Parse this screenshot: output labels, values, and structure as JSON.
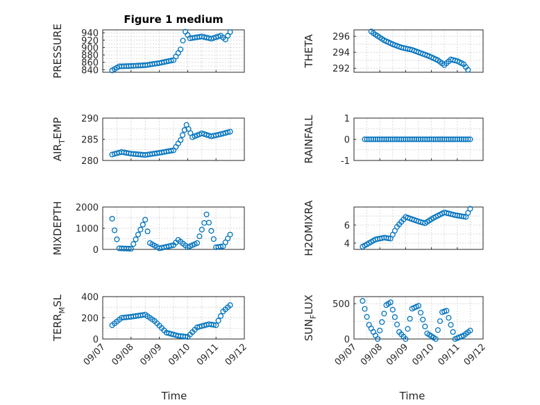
{
  "figure": {
    "background": "#ffffff",
    "marker_color": "#0072BD",
    "xtick_labels": [
      "09/07",
      "09/08",
      "09/09",
      "09/10",
      "09/11",
      "09/12"
    ],
    "xlabel": "Time"
  },
  "chart_data": [
    {
      "type": "scatter",
      "title": "Figure 1 medium",
      "ylabel": "PRESSURE",
      "xlim": [
        "2009-09-07",
        "2009-09-12"
      ],
      "ylim": [
        833,
        948
      ],
      "yticks": [
        840,
        860,
        880,
        900,
        920,
        940
      ],
      "grid": true,
      "series": [
        {
          "marker": "o",
          "x": [
            "2009-09-07 08:00",
            "2009-09-07 14:00",
            "2009-09-08 00:00",
            "2009-09-08 12:00",
            "2009-09-09 00:00",
            "2009-09-09 12:00",
            "2009-09-09 18:00",
            "2009-09-09 22:00",
            "2009-09-10 02:00",
            "2009-09-10 12:00",
            "2009-09-10 20:00",
            "2009-09-11 04:00",
            "2009-09-11 08:00",
            "2009-09-11 12:00"
          ],
          "y": [
            838,
            849,
            850,
            852,
            858,
            866,
            895,
            943,
            925,
            930,
            924,
            932,
            922,
            942
          ]
        }
      ]
    },
    {
      "type": "scatter",
      "title": "",
      "ylabel": "THETA",
      "xlim": [
        "2009-09-07",
        "2009-09-12"
      ],
      "ylim": [
        291.5,
        296.8
      ],
      "yticks": [
        292,
        294,
        296
      ],
      "grid": true,
      "series": [
        {
          "marker": "o",
          "x": [
            "2009-09-07 16:00",
            "2009-09-07 20:00",
            "2009-09-08 04:00",
            "2009-09-08 12:00",
            "2009-09-08 20:00",
            "2009-09-09 06:00",
            "2009-09-09 16:00",
            "2009-09-09 22:00",
            "2009-09-10 06:00",
            "2009-09-10 12:00",
            "2009-09-10 18:00",
            "2009-09-11 00:00",
            "2009-09-11 06:00",
            "2009-09-11 10:00"
          ],
          "y": [
            296.6,
            296.2,
            295.5,
            295.0,
            294.6,
            294.3,
            293.8,
            293.5,
            293.0,
            292.4,
            293.1,
            292.9,
            292.5,
            291.8
          ]
        }
      ]
    },
    {
      "type": "scatter",
      "title": "",
      "ylabel": "AIR_TEMP",
      "xlim": [
        "2009-09-07",
        "2009-09-12"
      ],
      "ylim": [
        280,
        290
      ],
      "yticks": [
        280,
        285,
        290
      ],
      "grid": true,
      "series": [
        {
          "marker": "o",
          "x": [
            "2009-09-07 08:00",
            "2009-09-07 16:00",
            "2009-09-08 00:00",
            "2009-09-08 12:00",
            "2009-09-09 00:00",
            "2009-09-09 12:00",
            "2009-09-09 18:00",
            "2009-09-09 23:00",
            "2009-09-10 04:00",
            "2009-09-10 12:00",
            "2009-09-10 20:00",
            "2009-09-11 04:00",
            "2009-09-11 12:00"
          ],
          "y": [
            281.4,
            282.0,
            281.6,
            281.3,
            281.8,
            282.4,
            284.8,
            288.4,
            285.5,
            286.4,
            285.7,
            286.2,
            286.8
          ]
        }
      ]
    },
    {
      "type": "scatter",
      "title": "",
      "ylabel": "RAINFALL",
      "xlim": [
        "2009-09-07",
        "2009-09-12"
      ],
      "ylim": [
        -1,
        1
      ],
      "yticks": [
        -1,
        0,
        1
      ],
      "grid": true,
      "series": [
        {
          "marker": "o",
          "x": [
            "2009-09-07 10:00",
            "2009-09-08 00:00",
            "2009-09-08 12:00",
            "2009-09-09 00:00",
            "2009-09-09 12:00",
            "2009-09-10 00:00",
            "2009-09-10 12:00",
            "2009-09-11 00:00",
            "2009-09-11 12:00"
          ],
          "y": [
            0,
            0,
            0,
            0,
            0,
            0,
            0,
            0,
            0
          ]
        }
      ]
    },
    {
      "type": "scatter",
      "title": "",
      "ylabel": "MIXDEPTH",
      "xlim": [
        "2009-09-07",
        "2009-09-12"
      ],
      "ylim": [
        0,
        2000
      ],
      "yticks": [
        0,
        1000,
        2000
      ],
      "grid": true,
      "series": [
        {
          "marker": "o",
          "x": [
            "2009-09-07 08:00",
            "2009-09-07 10:00",
            "2009-09-07 14:00",
            "2009-09-08 00:00",
            "2009-09-08 06:00",
            "2009-09-08 12:00",
            "2009-09-08 16:00",
            "2009-09-09 00:00",
            "2009-09-09 12:00",
            "2009-09-09 16:00",
            "2009-09-10 00:00",
            "2009-09-10 08:00",
            "2009-09-10 14:00",
            "2009-09-10 16:00",
            "2009-09-11 00:00",
            "2009-09-11 06:00",
            "2009-09-11 12:00"
          ],
          "y": [
            1450,
            900,
            50,
            30,
            700,
            1400,
            300,
            50,
            200,
            450,
            100,
            300,
            1250,
            1650,
            100,
            150,
            700
          ]
        }
      ]
    },
    {
      "type": "scatter",
      "title": "",
      "ylabel": "H2OMIXRA",
      "xlim": [
        "2009-09-07",
        "2009-09-12"
      ],
      "ylim": [
        3.3,
        8
      ],
      "yticks": [
        4,
        6
      ],
      "grid": true,
      "series": [
        {
          "marker": "o",
          "x": [
            "2009-09-07 08:00",
            "2009-09-07 20:00",
            "2009-09-08 04:00",
            "2009-09-08 10:00",
            "2009-09-08 16:00",
            "2009-09-09 00:00",
            "2009-09-09 12:00",
            "2009-09-09 18:00",
            "2009-09-10 02:00",
            "2009-09-10 12:00",
            "2009-09-10 22:00",
            "2009-09-11 08:00",
            "2009-09-11 12:00"
          ],
          "y": [
            3.6,
            4.4,
            4.6,
            4.5,
            5.8,
            6.9,
            6.4,
            6.2,
            6.8,
            7.4,
            7.1,
            6.9,
            7.8
          ]
        }
      ]
    },
    {
      "type": "scatter",
      "title": "",
      "ylabel": "TERR_MSL",
      "xlim": [
        "2009-09-07",
        "2009-09-12"
      ],
      "ylim": [
        0,
        400
      ],
      "yticks": [
        0,
        200,
        400
      ],
      "grid": true,
      "series": [
        {
          "marker": "o",
          "x": [
            "2009-09-07 08:00",
            "2009-09-07 16:00",
            "2009-09-08 00:00",
            "2009-09-08 12:00",
            "2009-09-08 20:00",
            "2009-09-09 06:00",
            "2009-09-09 16:00",
            "2009-09-10 00:00",
            "2009-09-10 08:00",
            "2009-09-10 18:00",
            "2009-09-11 00:00",
            "2009-09-11 06:00",
            "2009-09-11 12:00"
          ],
          "y": [
            130,
            200,
            210,
            230,
            170,
            60,
            30,
            20,
            110,
            140,
            130,
            260,
            320
          ]
        }
      ]
    },
    {
      "type": "scatter",
      "title": "",
      "ylabel": "SUN_FLUX",
      "xlim": [
        "2009-09-07",
        "2009-09-12"
      ],
      "ylim": [
        0,
        600
      ],
      "yticks": [
        0,
        500
      ],
      "grid": true,
      "series": [
        {
          "marker": "o",
          "x": [
            "2009-09-07 08:00",
            "2009-09-07 14:00",
            "2009-09-07 22:00",
            "2009-09-08 06:00",
            "2009-09-08 10:00",
            "2009-09-08 18:00",
            "2009-09-09 00:00",
            "2009-09-09 06:00",
            "2009-09-09 12:00",
            "2009-09-09 20:00",
            "2009-09-10 04:00",
            "2009-09-10 10:00",
            "2009-09-10 14:00",
            "2009-09-10 22:00",
            "2009-09-11 06:00",
            "2009-09-11 12:00"
          ],
          "y": [
            540,
            200,
            0,
            480,
            520,
            100,
            0,
            430,
            470,
            80,
            0,
            380,
            400,
            0,
            50,
            120
          ]
        }
      ]
    }
  ]
}
